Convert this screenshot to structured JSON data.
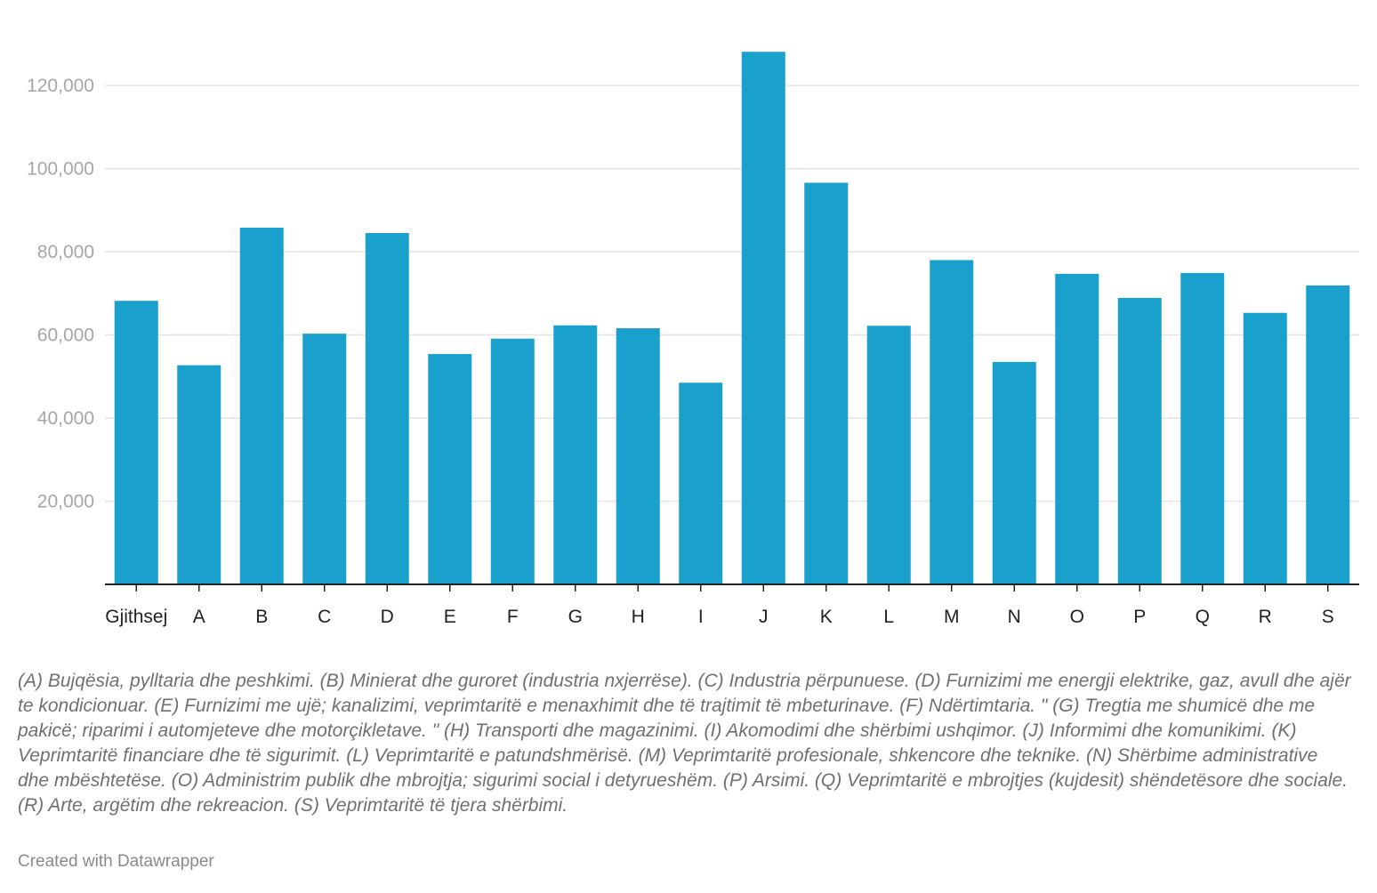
{
  "chart_data": {
    "type": "bar",
    "categories": [
      "Gjithsej",
      "A",
      "B",
      "C",
      "D",
      "E",
      "F",
      "G",
      "H",
      "I",
      "J",
      "K",
      "L",
      "M",
      "N",
      "O",
      "P",
      "Q",
      "R",
      "S"
    ],
    "values": [
      68200,
      52700,
      85800,
      60300,
      84500,
      55400,
      59100,
      62300,
      61600,
      48500,
      128100,
      96600,
      62200,
      78000,
      53500,
      74700,
      68900,
      74900,
      65300,
      71900
    ],
    "yticks": [
      20000,
      40000,
      60000,
      80000,
      100000,
      120000
    ],
    "ytick_labels": [
      "20,000",
      "40,000",
      "60,000",
      "80,000",
      "100,000",
      "120,000"
    ],
    "ylim": [
      0,
      132000
    ],
    "grid": true,
    "bar_color": "#1aa0cc",
    "gridline_color": "#e3e3e3",
    "axis_color": "#222222"
  },
  "footnote": "(A) Bujqësia, pylltaria dhe peshkimi. (B) Minierat dhe guroret (industria nxjerrëse). (C) Industria përpunuese. (D) Furnizimi me energji elektrike, gaz, avull dhe ajër te kondicionuar. (E) Furnizimi me ujë; kanalizimi, veprimtaritë e menaxhimit dhe të trajtimit të mbeturinave. (F) Ndërtimtaria. \" (G) Tregtia me shumicë dhe me pakicë; riparimi i automjeteve dhe motorçikletave. \" (H) Transporti dhe magazinimi. (I) Akomodimi dhe shërbimi ushqimor. (J) Informimi dhe komunikimi. (K) Veprimtaritë financiare dhe të sigurimit. (L) Veprimtaritë e patundshmërisë. (M) Veprimtaritë profesionale, shkencore dhe teknike. (N) Shërbime administrative dhe mbështetëse. (O) Administrim publik dhe mbrojtja; sigurimi social i detyrueshëm. (P) Arsimi. (Q) Veprimtaritë e mbrojtjes (kujdesit) shëndetësore dhe sociale. (R) Arte, argëtim dhe rekreacion. (S) Veprimtaritë të tjera shërbimi.",
  "credit": "Created with Datawrapper"
}
